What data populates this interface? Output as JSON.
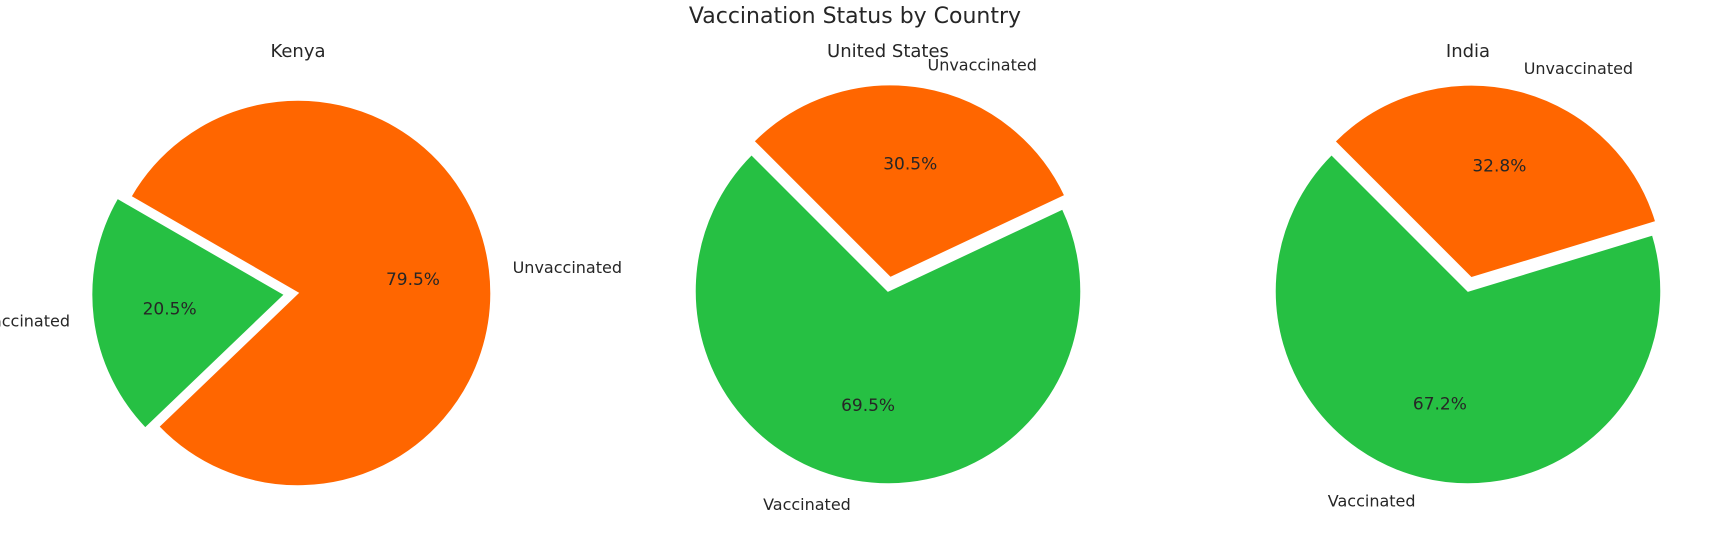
{
  "title": "Vaccination Status by Country",
  "chart_data": [
    {
      "type": "pie",
      "title": "Kenya",
      "labels": [
        "Vaccinated",
        "Unvaccinated"
      ],
      "values": [
        20.5,
        79.5
      ],
      "percent_labels": [
        "20.5%",
        "79.5%"
      ],
      "colors": [
        "#26c043",
        "#ff6600"
      ],
      "explode": [
        "Vaccinated"
      ]
    },
    {
      "type": "pie",
      "title": "United States",
      "labels": [
        "Vaccinated",
        "Unvaccinated"
      ],
      "values": [
        69.5,
        30.5
      ],
      "percent_labels": [
        "69.5%",
        "30.5%"
      ],
      "colors": [
        "#26c043",
        "#ff6600"
      ],
      "explode": [
        "Unvaccinated"
      ]
    },
    {
      "type": "pie",
      "title": "India",
      "labels": [
        "Vaccinated",
        "Unvaccinated"
      ],
      "values": [
        67.2,
        32.8
      ],
      "percent_labels": [
        "67.2%",
        "32.8%"
      ],
      "colors": [
        "#26c043",
        "#ff6600"
      ],
      "explode": [
        "Unvaccinated"
      ]
    }
  ]
}
